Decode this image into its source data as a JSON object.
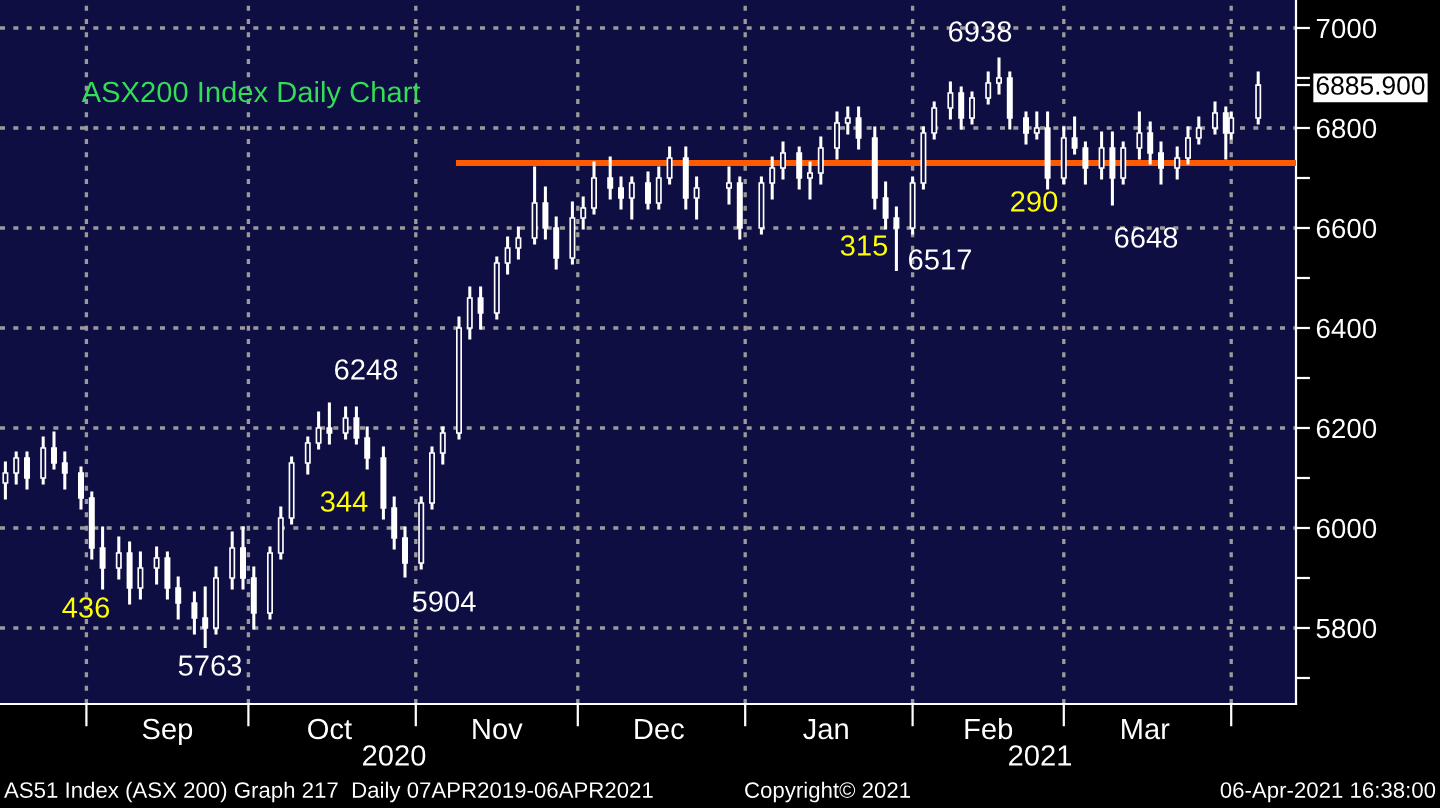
{
  "chart_data": {
    "type": "candlestick",
    "title": "ASX200 Index Daily Chart",
    "color": "#ffffff",
    "x": [
      "2020-08-17",
      "2020-08-19",
      "2020-08-21",
      "2020-08-24",
      "2020-08-26",
      "2020-08-28",
      "2020-08-31",
      "2020-09-02",
      "2020-09-04",
      "2020-09-07",
      "2020-09-09",
      "2020-09-11",
      "2020-09-14",
      "2020-09-16",
      "2020-09-18",
      "2020-09-21",
      "2020-09-23",
      "2020-09-25",
      "2020-09-28",
      "2020-09-30",
      "2020-10-02",
      "2020-10-05",
      "2020-10-07",
      "2020-10-09",
      "2020-10-12",
      "2020-10-14",
      "2020-10-16",
      "2020-10-19",
      "2020-10-21",
      "2020-10-23",
      "2020-10-26",
      "2020-10-28",
      "2020-10-30",
      "2020-11-02",
      "2020-11-04",
      "2020-11-06",
      "2020-11-09",
      "2020-11-11",
      "2020-11-13",
      "2020-11-16",
      "2020-11-18",
      "2020-11-20",
      "2020-11-23",
      "2020-11-25",
      "2020-11-27",
      "2020-11-30",
      "2020-12-02",
      "2020-12-04",
      "2020-12-07",
      "2020-12-09",
      "2020-12-11",
      "2020-12-14",
      "2020-12-16",
      "2020-12-18",
      "2020-12-21",
      "2020-12-23",
      "2020-12-29",
      "2020-12-31",
      "2021-01-04",
      "2021-01-06",
      "2021-01-08",
      "2021-01-11",
      "2021-01-13",
      "2021-01-15",
      "2021-01-18",
      "2021-01-20",
      "2021-01-22",
      "2021-01-25",
      "2021-01-27",
      "2021-01-29",
      "2021-02-01",
      "2021-02-03",
      "2021-02-05",
      "2021-02-08",
      "2021-02-10",
      "2021-02-12",
      "2021-02-15",
      "2021-02-17",
      "2021-02-19",
      "2021-02-22",
      "2021-02-24",
      "2021-02-26",
      "2021-03-01",
      "2021-03-03",
      "2021-03-05",
      "2021-03-08",
      "2021-03-10",
      "2021-03-12",
      "2021-03-15",
      "2021-03-17",
      "2021-03-19",
      "2021-03-22",
      "2021-03-24",
      "2021-03-26",
      "2021-03-29",
      "2021-03-31",
      "2021-04-01",
      "2021-04-06"
    ],
    "ohlc": [
      [
        6090,
        6130,
        6060,
        6110
      ],
      [
        6110,
        6150,
        6090,
        6140
      ],
      [
        6140,
        6150,
        6080,
        6100
      ],
      [
        6100,
        6180,
        6090,
        6160
      ],
      [
        6160,
        6190,
        6120,
        6130
      ],
      [
        6130,
        6150,
        6080,
        6110
      ],
      [
        6110,
        6120,
        6040,
        6060
      ],
      [
        6060,
        6070,
        5940,
        5960
      ],
      [
        5960,
        6000,
        5880,
        5920
      ],
      [
        5920,
        5980,
        5900,
        5950
      ],
      [
        5950,
        5970,
        5850,
        5880
      ],
      [
        5880,
        5950,
        5860,
        5920
      ],
      [
        5920,
        5960,
        5890,
        5940
      ],
      [
        5940,
        5950,
        5860,
        5880
      ],
      [
        5880,
        5900,
        5820,
        5850
      ],
      [
        5850,
        5870,
        5790,
        5820
      ],
      [
        5820,
        5880,
        5763,
        5800
      ],
      [
        5800,
        5920,
        5790,
        5900
      ],
      [
        5900,
        5990,
        5880,
        5960
      ],
      [
        5960,
        6000,
        5880,
        5900
      ],
      [
        5900,
        5920,
        5800,
        5830
      ],
      [
        5830,
        5960,
        5820,
        5950
      ],
      [
        5950,
        6040,
        5940,
        6020
      ],
      [
        6020,
        6140,
        6010,
        6130
      ],
      [
        6130,
        6180,
        6110,
        6170
      ],
      [
        6170,
        6230,
        6160,
        6200
      ],
      [
        6200,
        6248,
        6170,
        6190
      ],
      [
        6190,
        6240,
        6180,
        6220
      ],
      [
        6220,
        6240,
        6170,
        6180
      ],
      [
        6180,
        6200,
        6120,
        6140
      ],
      [
        6140,
        6160,
        6020,
        6040
      ],
      [
        6040,
        6060,
        5960,
        5980
      ],
      [
        5980,
        6000,
        5904,
        5930
      ],
      [
        5930,
        6060,
        5920,
        6050
      ],
      [
        6050,
        6160,
        6040,
        6150
      ],
      [
        6150,
        6200,
        6130,
        6190
      ],
      [
        6190,
        6420,
        6180,
        6400
      ],
      [
        6400,
        6480,
        6380,
        6460
      ],
      [
        6460,
        6480,
        6400,
        6430
      ],
      [
        6430,
        6540,
        6420,
        6530
      ],
      [
        6530,
        6580,
        6510,
        6560
      ],
      [
        6560,
        6600,
        6540,
        6580
      ],
      [
        6580,
        6720,
        6570,
        6650
      ],
      [
        6650,
        6680,
        6580,
        6600
      ],
      [
        6600,
        6620,
        6520,
        6540
      ],
      [
        6540,
        6650,
        6530,
        6620
      ],
      [
        6620,
        6660,
        6600,
        6640
      ],
      [
        6640,
        6730,
        6630,
        6700
      ],
      [
        6700,
        6740,
        6660,
        6680
      ],
      [
        6680,
        6700,
        6640,
        6660
      ],
      [
        6660,
        6700,
        6620,
        6690
      ],
      [
        6690,
        6710,
        6640,
        6650
      ],
      [
        6650,
        6720,
        6640,
        6700
      ],
      [
        6700,
        6760,
        6690,
        6740
      ],
      [
        6740,
        6760,
        6640,
        6660
      ],
      [
        6660,
        6700,
        6620,
        6680
      ],
      [
        6680,
        6720,
        6650,
        6690
      ],
      [
        6690,
        6700,
        6580,
        6600
      ],
      [
        6600,
        6700,
        6590,
        6690
      ],
      [
        6690,
        6740,
        6660,
        6720
      ],
      [
        6720,
        6770,
        6700,
        6750
      ],
      [
        6750,
        6760,
        6680,
        6700
      ],
      [
        6700,
        6730,
        6660,
        6710
      ],
      [
        6710,
        6780,
        6690,
        6760
      ],
      [
        6760,
        6830,
        6740,
        6810
      ],
      [
        6810,
        6840,
        6790,
        6820
      ],
      [
        6820,
        6840,
        6760,
        6780
      ],
      [
        6780,
        6800,
        6640,
        6660
      ],
      [
        6660,
        6690,
        6600,
        6620
      ],
      [
        6620,
        6640,
        6517,
        6600
      ],
      [
        6600,
        6700,
        6590,
        6690
      ],
      [
        6690,
        6800,
        6680,
        6790
      ],
      [
        6790,
        6850,
        6780,
        6840
      ],
      [
        6840,
        6890,
        6820,
        6870
      ],
      [
        6870,
        6880,
        6800,
        6820
      ],
      [
        6820,
        6870,
        6810,
        6860
      ],
      [
        6860,
        6910,
        6850,
        6890
      ],
      [
        6890,
        6938,
        6870,
        6900
      ],
      [
        6900,
        6910,
        6800,
        6820
      ],
      [
        6820,
        6830,
        6770,
        6790
      ],
      [
        6790,
        6830,
        6780,
        6800
      ],
      [
        6800,
        6830,
        6680,
        6700
      ],
      [
        6700,
        6800,
        6690,
        6780
      ],
      [
        6780,
        6820,
        6750,
        6760
      ],
      [
        6760,
        6770,
        6690,
        6720
      ],
      [
        6720,
        6790,
        6700,
        6760
      ],
      [
        6760,
        6790,
        6648,
        6700
      ],
      [
        6700,
        6770,
        6690,
        6760
      ],
      [
        6760,
        6830,
        6740,
        6790
      ],
      [
        6790,
        6810,
        6730,
        6750
      ],
      [
        6750,
        6770,
        6690,
        6720
      ],
      [
        6720,
        6760,
        6700,
        6740
      ],
      [
        6740,
        6800,
        6730,
        6780
      ],
      [
        6780,
        6820,
        6770,
        6800
      ],
      [
        6800,
        6850,
        6790,
        6830
      ],
      [
        6830,
        6840,
        6740,
        6790
      ],
      [
        6790,
        6830,
        6780,
        6820
      ],
      [
        6820,
        6910,
        6810,
        6885.9
      ]
    ],
    "series": [
      {
        "type": "line",
        "color": "#ff5a00",
        "x": [
          "2020-11-09",
          "2021-04-13"
        ],
        "values": [
          6730,
          6730
        ]
      }
    ],
    "xlim": [
      "2020-08-16",
      "2021-04-13"
    ],
    "xticks": [
      {
        "value": "2020-09-01",
        "label": null
      },
      {
        "value": "2020-09-16",
        "label": "Sep"
      },
      {
        "value": "2020-10-01",
        "label": null
      },
      {
        "value": "2020-10-16",
        "label": "Oct"
      },
      {
        "value": "2020-11-01",
        "label": null
      },
      {
        "value": "2020-11-16",
        "label": "Nov"
      },
      {
        "value": "2020-12-01",
        "label": null
      },
      {
        "value": "2020-12-16",
        "label": "Dec"
      },
      {
        "value": "2021-01-01",
        "label": null
      },
      {
        "value": "2021-01-16",
        "label": "Jan"
      },
      {
        "value": "2021-02-01",
        "label": null
      },
      {
        "value": "2021-02-15",
        "label": "Feb"
      },
      {
        "value": "2021-03-01",
        "label": null
      },
      {
        "value": "2021-03-16",
        "label": "Mar"
      },
      {
        "value": "2021-04-01",
        "label": null
      }
    ],
    "ylim": [
      5648,
      7056
    ],
    "yticks": [
      {
        "value": 5700,
        "label": null
      },
      5800,
      {
        "value": 5900,
        "label": null
      },
      6000,
      {
        "value": 6100,
        "label": null
      },
      6200,
      {
        "value": 6300,
        "label": null
      },
      6400,
      {
        "value": 6500,
        "label": null
      },
      6600,
      {
        "value": 6700,
        "label": null
      },
      6800,
      {
        "value": 6885.9,
        "label": "6885.900"
      },
      {
        "value": 6900,
        "label": null
      },
      7000
    ],
    "grid": true,
    "annotations": [
      "6248",
      "5763",
      "5904",
      "6938",
      "6517",
      "6648",
      "436",
      "344",
      "315",
      "290",
      "2020",
      "2021",
      "AS51 Index (ASX 200) Graph 217  Daily 07APR2019-06APR2021",
      "Copyright© 2021",
      "06-Apr-2021 16:38:00"
    ]
  }
}
